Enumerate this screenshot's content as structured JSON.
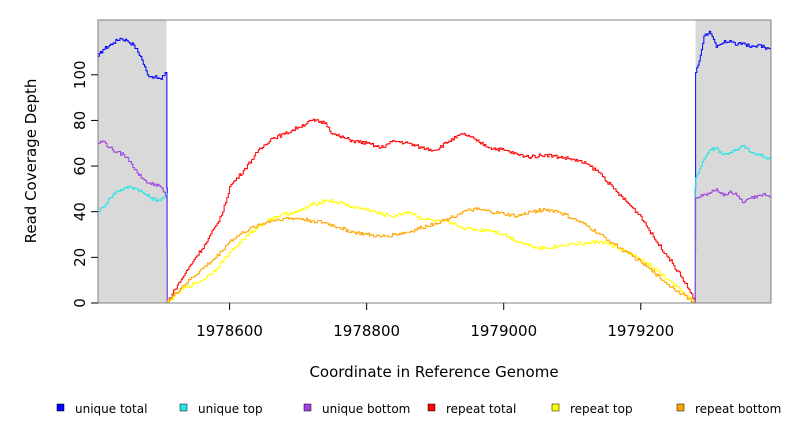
{
  "chart_data": {
    "type": "line",
    "title": "",
    "xlabel": "Coordinate in Reference Genome",
    "ylabel": "Read Coverage Depth",
    "xlim": [
      1978408,
      1979390
    ],
    "ylim": [
      0,
      124
    ],
    "x_ticks": [
      1978600,
      1978800,
      1979000,
      1979200
    ],
    "y_ticks": [
      0,
      20,
      40,
      60,
      80,
      100
    ],
    "shaded_regions": [
      [
        1978408,
        1978508
      ],
      [
        1979280,
        1979390
      ]
    ],
    "grid": false,
    "legend_position": "bottom",
    "series": [
      {
        "name": "unique total",
        "color": "#0000ff",
        "x": [
          1978408,
          1978415,
          1978430,
          1978440,
          1978450,
          1978460,
          1978470,
          1978480,
          1978490,
          1978500,
          1978506,
          1978508,
          1978509,
          1978600,
          1978800,
          1979000,
          1979200,
          1979279,
          1979280,
          1979285,
          1979292,
          1979300,
          1979310,
          1979320,
          1979330,
          1979340,
          1979350,
          1979360,
          1979370,
          1979380,
          1979390
        ],
        "values": [
          108,
          111,
          114,
          116,
          115,
          113,
          108,
          100,
          99,
          98,
          101,
          101,
          0,
          0,
          0,
          0,
          0,
          0,
          101,
          106,
          117,
          119,
          112,
          114,
          115,
          113,
          114,
          112,
          113,
          112,
          111
        ]
      },
      {
        "name": "unique top",
        "color": "#22e5e5",
        "x": [
          1978408,
          1978415,
          1978425,
          1978435,
          1978445,
          1978455,
          1978465,
          1978475,
          1978485,
          1978495,
          1978503,
          1978508,
          1978509,
          1978600,
          1978800,
          1979000,
          1979200,
          1979279,
          1979280,
          1979290,
          1979300,
          1979310,
          1979320,
          1979330,
          1979340,
          1979350,
          1979360,
          1979370,
          1979380,
          1979390
        ],
        "values": [
          40,
          42,
          46,
          49,
          50,
          51,
          50,
          48,
          46,
          45,
          46,
          48,
          0,
          0,
          0,
          0,
          0,
          0,
          55,
          62,
          67,
          68,
          65,
          66,
          67,
          69,
          66,
          65,
          64,
          63
        ]
      },
      {
        "name": "unique bottom",
        "color": "#a040e0",
        "x": [
          1978408,
          1978415,
          1978425,
          1978435,
          1978445,
          1978455,
          1978465,
          1978475,
          1978485,
          1978495,
          1978503,
          1978508,
          1978509,
          1978600,
          1978800,
          1979000,
          1979200,
          1979279,
          1979280,
          1979290,
          1979300,
          1979310,
          1979320,
          1979330,
          1979340,
          1979350,
          1979360,
          1979370,
          1979380,
          1979390
        ],
        "values": [
          70,
          71,
          68,
          66,
          65,
          62,
          57,
          54,
          52,
          52,
          49,
          46,
          0,
          0,
          0,
          0,
          0,
          0,
          46,
          47,
          48,
          50,
          47,
          49,
          47,
          44,
          46,
          47,
          48,
          47
        ]
      },
      {
        "name": "repeat total",
        "color": "#ff0000",
        "x": [
          1978508,
          1978520,
          1978535,
          1978550,
          1978565,
          1978580,
          1978590,
          1978600,
          1978620,
          1978640,
          1978660,
          1978680,
          1978700,
          1978720,
          1978740,
          1978750,
          1978760,
          1978780,
          1978800,
          1978820,
          1978840,
          1978860,
          1978880,
          1978900,
          1978920,
          1978940,
          1978950,
          1978960,
          1978980,
          1979000,
          1979020,
          1979040,
          1979060,
          1979080,
          1979100,
          1979120,
          1979140,
          1979160,
          1979180,
          1979200,
          1979220,
          1979240,
          1979260,
          1979270,
          1979278
        ],
        "values": [
          0,
          6,
          13,
          20,
          26,
          34,
          40,
          51,
          58,
          66,
          72,
          74,
          77,
          80,
          79,
          74,
          73,
          71,
          70,
          68,
          71,
          70,
          68,
          67,
          71,
          74,
          73,
          71,
          68,
          67,
          65,
          64,
          65,
          64,
          63,
          61,
          57,
          50,
          44,
          38,
          28,
          20,
          11,
          6,
          1
        ]
      },
      {
        "name": "repeat top",
        "color": "#ffff00",
        "x": [
          1978508,
          1978530,
          1978560,
          1978580,
          1978600,
          1978620,
          1978640,
          1978660,
          1978680,
          1978700,
          1978720,
          1978740,
          1978760,
          1978780,
          1978800,
          1978820,
          1978840,
          1978860,
          1978880,
          1978900,
          1978920,
          1978940,
          1978960,
          1978980,
          1979000,
          1979020,
          1979040,
          1979060,
          1979080,
          1979100,
          1979120,
          1979140,
          1979160,
          1979180,
          1979200,
          1979220,
          1979240,
          1979260,
          1979278
        ],
        "values": [
          0,
          6,
          10,
          15,
          22,
          28,
          33,
          37,
          39,
          40,
          43,
          45,
          44,
          42,
          41,
          39,
          38,
          40,
          37,
          36,
          35,
          33,
          32,
          32,
          30,
          27,
          25,
          24,
          25,
          26,
          26,
          27,
          25,
          22,
          19,
          15,
          10,
          5,
          0
        ]
      },
      {
        "name": "repeat bottom",
        "color": "#ffa500",
        "x": [
          1978508,
          1978530,
          1978560,
          1978580,
          1978600,
          1978620,
          1978640,
          1978660,
          1978680,
          1978700,
          1978720,
          1978740,
          1978760,
          1978780,
          1978800,
          1978820,
          1978840,
          1978860,
          1978880,
          1978900,
          1978920,
          1978940,
          1978960,
          1978980,
          1979000,
          1979020,
          1979040,
          1979060,
          1979080,
          1979100,
          1979120,
          1979140,
          1979160,
          1979180,
          1979200,
          1979220,
          1979240,
          1979260,
          1979278
        ],
        "values": [
          0,
          7,
          15,
          20,
          27,
          31,
          34,
          36,
          37,
          37,
          36,
          35,
          33,
          31,
          30,
          29,
          30,
          31,
          33,
          35,
          37,
          40,
          41,
          40,
          39,
          38,
          40,
          41,
          40,
          37,
          34,
          30,
          26,
          22,
          18,
          13,
          8,
          4,
          0
        ]
      }
    ]
  }
}
